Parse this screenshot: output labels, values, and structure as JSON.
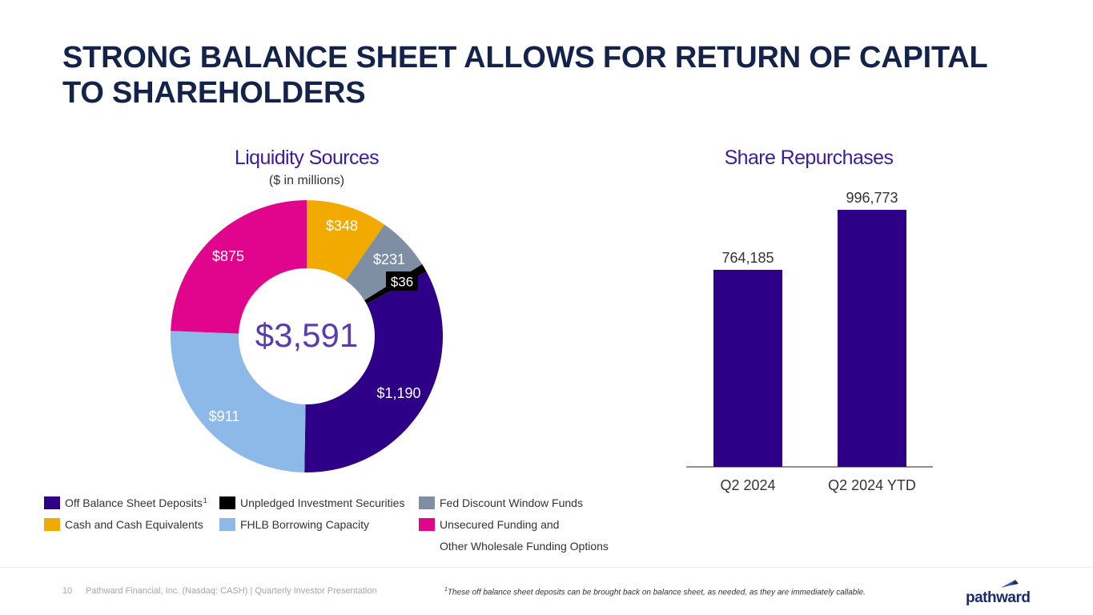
{
  "slide": {
    "title_line1": "STRONG BALANCE SHEET ALLOWS FOR RETURN OF CAPITAL",
    "title_line2": "TO SHAREHOLDERS",
    "page_number": "10",
    "footer_text": "Pathward Financial, Inc. (Nasdaq: CASH) | Quarterly Investor Presentation",
    "footnote_marker": "1",
    "footnote_text": "These off balance sheet deposits can be brought back on balance sheet, as needed, as they are immediately callable.",
    "logo_text": "pathward"
  },
  "legend": [
    {
      "label": "Off Balance Sheet Deposits",
      "sup": "1",
      "color": "#2e0087"
    },
    {
      "label": "Unpledged Investment Securities",
      "color": "#000000"
    },
    {
      "label": "Fed Discount Window Funds",
      "color": "#7f8fa3"
    },
    {
      "label": "Cash and Cash Equivalents",
      "color": "#f2a900"
    },
    {
      "label": "FHLB Borrowing Capacity",
      "color": "#8db9e8"
    },
    {
      "label": "Unsecured Funding and",
      "label2": "Other Wholesale Funding Options",
      "color": "#e0058c"
    }
  ],
  "chart_data": [
    {
      "type": "pie",
      "subtype": "donut",
      "title": "Liquidity Sources",
      "subtitle": "($ in millions)",
      "center_label": "$3,591",
      "total": 3591,
      "slices": [
        {
          "name": "Cash and Cash Equivalents",
          "value": 348,
          "label": "$348",
          "color": "#f2a900",
          "label_color": "#ffffff"
        },
        {
          "name": "Fed Discount Window Funds",
          "value": 231,
          "label": "$231",
          "color": "#7f8fa3",
          "label_color": "#ffffff"
        },
        {
          "name": "Unpledged Investment Securities",
          "value": 36,
          "label": "$36",
          "color": "#000000",
          "label_color": "#ffffff"
        },
        {
          "name": "Off Balance Sheet Deposits",
          "value": 1190,
          "label": "$1,190",
          "color": "#2e0087",
          "label_color": "#ffffff"
        },
        {
          "name": "FHLB Borrowing Capacity",
          "value": 911,
          "label": "$911",
          "color": "#8db9e8",
          "label_color": "#ffffff"
        },
        {
          "name": "Unsecured Funding and Other Wholesale Funding Options",
          "value": 875,
          "label": "$875",
          "color": "#e0058c",
          "label_color": "#ffffff"
        }
      ]
    },
    {
      "type": "bar",
      "title": "Share Repurchases",
      "categories": [
        "Q2 2024",
        "Q2 2024 YTD"
      ],
      "values": [
        764185,
        996773
      ],
      "value_labels": [
        "764,185",
        "996,773"
      ],
      "bar_color": "#2e0087",
      "ylim": [
        0,
        1000000
      ],
      "xlabel": "",
      "ylabel": "",
      "grid": false
    }
  ]
}
